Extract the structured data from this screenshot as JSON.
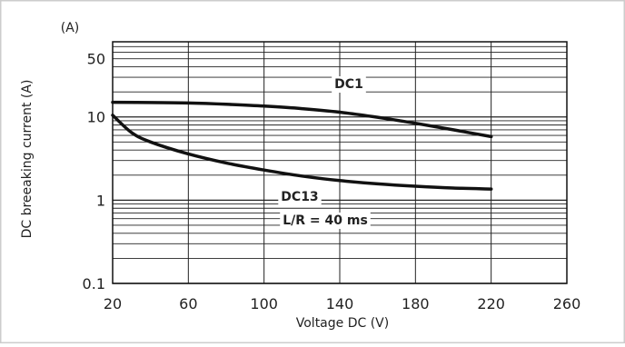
{
  "chart_data": {
    "type": "line",
    "title": "",
    "xlabel": "Voltage DC (V)",
    "ylabel": "DC breeaking current (A)",
    "y_unit_label": "(A)",
    "y_scale": "log",
    "xlim": [
      20,
      260
    ],
    "ylim": [
      0.1,
      80
    ],
    "grid": true,
    "x_ticks": [
      20,
      60,
      100,
      140,
      180,
      220,
      260
    ],
    "y_tick_labels": [
      {
        "value": 50,
        "label": "50"
      },
      {
        "value": 10,
        "label": "10"
      },
      {
        "value": 1,
        "label": "1"
      },
      {
        "value": 0.1,
        "label": "0.1"
      }
    ],
    "series": [
      {
        "name": "DC1",
        "x": [
          20,
          40,
          60,
          80,
          100,
          120,
          140,
          160,
          180,
          200,
          220
        ],
        "y": [
          15,
          14.9,
          14.7,
          14.2,
          13.5,
          12.6,
          11.4,
          9.9,
          8.4,
          7.0,
          5.8
        ]
      },
      {
        "name": "DC13",
        "annotation": "L/R = 40 ms",
        "x": [
          20,
          30,
          40,
          60,
          80,
          100,
          120,
          140,
          160,
          180,
          200,
          220
        ],
        "y": [
          10.5,
          6.5,
          5.0,
          3.6,
          2.8,
          2.3,
          1.95,
          1.72,
          1.57,
          1.47,
          1.4,
          1.36
        ]
      }
    ]
  }
}
